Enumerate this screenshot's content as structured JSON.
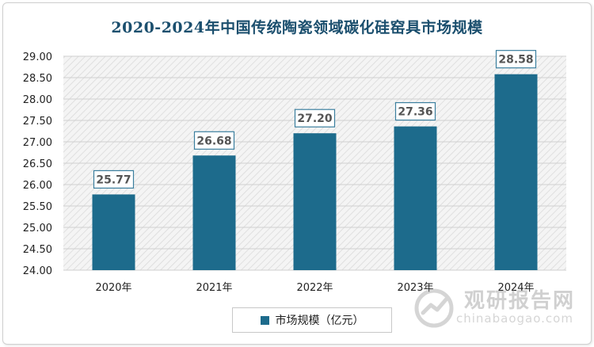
{
  "chart_data": {
    "type": "bar",
    "title": "2020-2024年中国传统陶瓷领域碳化硅窑具市场规模",
    "categories": [
      "2020年",
      "2021年",
      "2022年",
      "2023年",
      "2024年"
    ],
    "series": [
      {
        "name": "市场规模（亿元）",
        "values": [
          25.77,
          26.68,
          27.2,
          27.36,
          28.58
        ]
      }
    ],
    "data_labels": [
      "25.77",
      "26.68",
      "27.20",
      "27.36",
      "28.58"
    ],
    "y_ticks": [
      "24.00",
      "24.50",
      "25.00",
      "25.50",
      "26.00",
      "26.50",
      "27.00",
      "27.50",
      "28.00",
      "28.50",
      "29.00"
    ],
    "ylim": [
      24.0,
      29.0
    ],
    "legend_position": "bottom",
    "bar_color": "#1d6b8c"
  },
  "watermark": {
    "cn": "观研报告网",
    "en": "chinabaogao.com"
  }
}
